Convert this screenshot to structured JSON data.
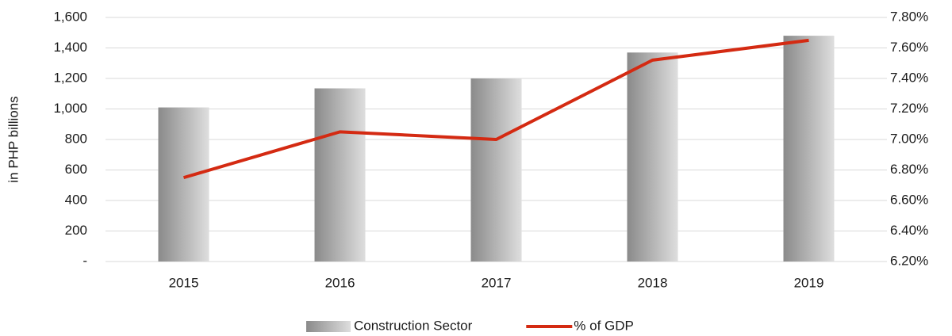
{
  "chart_data": {
    "type": "bar",
    "y_label": "in PHP billions",
    "categories": [
      "2015",
      "2016",
      "2017",
      "2018",
      "2019"
    ],
    "series": [
      {
        "name": "Construction Sector",
        "type": "bar",
        "color": "#8a8a8a",
        "values": [
          1010,
          1135,
          1200,
          1370,
          1480
        ]
      },
      {
        "name": "% of GDP",
        "type": "line",
        "axis": "y2",
        "color": "#d42a12",
        "values": [
          6.75,
          7.05,
          7.0,
          7.52,
          7.65
        ]
      }
    ],
    "ylim": [
      0,
      1600
    ],
    "yticks": [
      {
        "value": 0,
        "label": "-"
      },
      200,
      400,
      600,
      800,
      {
        "value": 1000,
        "label": "1,000"
      },
      {
        "value": 1200,
        "label": "1,200"
      },
      {
        "value": 1400,
        "label": "1,400"
      },
      {
        "value": 1600,
        "label": "1,600"
      }
    ],
    "y2lim": [
      6.2,
      7.8
    ],
    "y2ticks": [
      {
        "value": 6.2,
        "label": "6.20%"
      },
      {
        "value": 6.4,
        "label": "6.40%"
      },
      {
        "value": 6.6,
        "label": "6.60%"
      },
      {
        "value": 6.8,
        "label": "6.80%"
      },
      {
        "value": 7.0,
        "label": "7.00%"
      },
      {
        "value": 7.2,
        "label": "7.20%"
      },
      {
        "value": 7.4,
        "label": "7.40%"
      },
      {
        "value": 7.6,
        "label": "7.60%"
      },
      {
        "value": 7.8,
        "label": "7.80%"
      }
    ],
    "grid": true,
    "legend": "bottom"
  }
}
